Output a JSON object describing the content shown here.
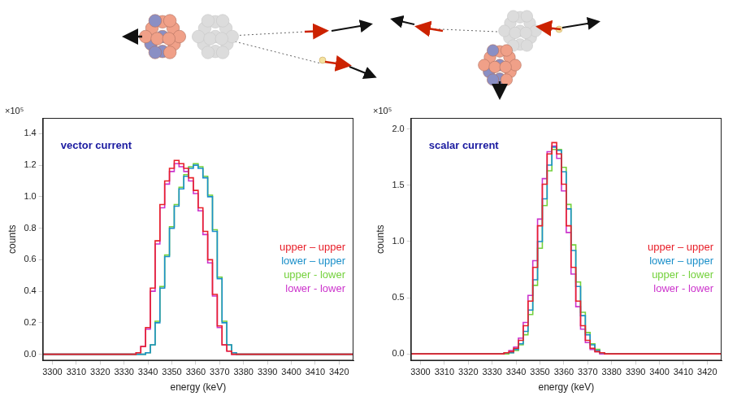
{
  "chart_data": [
    {
      "type": "line",
      "title": "vector current",
      "x_label": "energy (keV)",
      "y_label": "counts",
      "y_unit": "×10⁵",
      "grid": false,
      "legend": "right",
      "xlim": [
        3296,
        3426
      ],
      "xticks": [
        3300,
        3310,
        3320,
        3330,
        3340,
        3350,
        3360,
        3370,
        3380,
        3390,
        3400,
        3410,
        3420
      ],
      "ylim": [
        -0.04,
        1.5
      ],
      "yticks": [
        {
          "value": 0,
          "label": "0.0"
        },
        {
          "value": 0.2,
          "label": "0.2"
        },
        {
          "value": 0.4,
          "label": "0.4"
        },
        {
          "value": 0.6,
          "label": "0.6"
        },
        {
          "value": 0.8,
          "label": "0.8"
        },
        {
          "value": 1.0,
          "label": "1.0"
        },
        {
          "value": 1.2,
          "label": "1.2"
        },
        {
          "value": 1.4,
          "label": "1.4"
        }
      ],
      "x": [
        3296,
        3330,
        3332,
        3334,
        3336,
        3338,
        3340,
        3342,
        3344,
        3346,
        3348,
        3350,
        3352,
        3354,
        3356,
        3358,
        3360,
        3362,
        3364,
        3366,
        3368,
        3370,
        3372,
        3374,
        3376,
        3378,
        3380,
        3382,
        3384,
        3426
      ],
      "series": [
        {
          "name": "upper – upper",
          "color": "#e8202a",
          "values": [
            0,
            0,
            0,
            0,
            0.01,
            0.05,
            0.17,
            0.42,
            0.72,
            0.95,
            1.1,
            1.18,
            1.23,
            1.21,
            1.18,
            1.12,
            1.04,
            0.93,
            0.78,
            0.6,
            0.38,
            0.18,
            0.06,
            0.02,
            0,
            0,
            0,
            0,
            0,
            0
          ]
        },
        {
          "name": "lower – upper",
          "color": "#1a8fc9",
          "values": [
            0,
            0,
            0,
            0,
            0,
            0,
            0.01,
            0.06,
            0.2,
            0.42,
            0.62,
            0.8,
            0.94,
            1.05,
            1.13,
            1.18,
            1.2,
            1.18,
            1.12,
            1.0,
            0.78,
            0.48,
            0.2,
            0.06,
            0.01,
            0,
            0,
            0,
            0,
            0
          ]
        },
        {
          "name": "upper - lower",
          "color": "#74d13c",
          "values": [
            0,
            0,
            0,
            0,
            0,
            0,
            0.01,
            0.06,
            0.21,
            0.43,
            0.63,
            0.81,
            0.95,
            1.06,
            1.14,
            1.19,
            1.21,
            1.19,
            1.13,
            1.01,
            0.79,
            0.49,
            0.21,
            0.06,
            0.01,
            0,
            0,
            0,
            0,
            0
          ]
        },
        {
          "name": "lower - lower",
          "color": "#cc33cc",
          "values": [
            0,
            0,
            0,
            0,
            0.01,
            0.05,
            0.16,
            0.4,
            0.7,
            0.93,
            1.08,
            1.16,
            1.21,
            1.19,
            1.16,
            1.1,
            1.02,
            0.91,
            0.76,
            0.58,
            0.37,
            0.17,
            0.06,
            0.02,
            0,
            0,
            0,
            0,
            0,
            0
          ]
        }
      ]
    },
    {
      "type": "line",
      "title": "scalar current",
      "x_label": "energy (keV)",
      "y_label": "counts",
      "y_unit": "×10⁵",
      "grid": false,
      "legend": "right",
      "xlim": [
        3296,
        3426
      ],
      "xticks": [
        3300,
        3310,
        3320,
        3330,
        3340,
        3350,
        3360,
        3370,
        3380,
        3390,
        3400,
        3410,
        3420
      ],
      "ylim": [
        -0.06,
        2.1
      ],
      "yticks": [
        {
          "value": 0,
          "label": "0.0"
        },
        {
          "value": 0.5,
          "label": "0.5"
        },
        {
          "value": 1.0,
          "label": "1.0"
        },
        {
          "value": 1.5,
          "label": "1.5"
        },
        {
          "value": 2.0,
          "label": "2.0"
        }
      ],
      "x": [
        3296,
        3330,
        3332,
        3334,
        3336,
        3338,
        3340,
        3342,
        3344,
        3346,
        3348,
        3350,
        3352,
        3354,
        3356,
        3358,
        3360,
        3362,
        3364,
        3366,
        3368,
        3370,
        3372,
        3374,
        3376,
        3378,
        3380,
        3382,
        3384,
        3426
      ],
      "series": [
        {
          "name": "upper – upper",
          "color": "#e8202a",
          "values": [
            0,
            0,
            0,
            0,
            0.01,
            0.02,
            0.05,
            0.12,
            0.25,
            0.47,
            0.77,
            1.14,
            1.51,
            1.78,
            1.88,
            1.78,
            1.51,
            1.14,
            0.77,
            0.47,
            0.25,
            0.12,
            0.05,
            0.02,
            0.01,
            0,
            0,
            0,
            0,
            0
          ]
        },
        {
          "name": "lower – upper",
          "color": "#1a8fc9",
          "values": [
            0,
            0,
            0,
            0,
            0.01,
            0.01,
            0.04,
            0.09,
            0.2,
            0.39,
            0.66,
            1.0,
            1.38,
            1.68,
            1.84,
            1.81,
            1.62,
            1.29,
            0.92,
            0.6,
            0.34,
            0.17,
            0.08,
            0.03,
            0.01,
            0,
            0,
            0,
            0,
            0
          ]
        },
        {
          "name": "upper - lower",
          "color": "#74d13c",
          "values": [
            0,
            0,
            0,
            0,
            0,
            0.01,
            0.03,
            0.08,
            0.17,
            0.35,
            0.61,
            0.94,
            1.32,
            1.63,
            1.82,
            1.82,
            1.66,
            1.33,
            0.97,
            0.64,
            0.37,
            0.19,
            0.09,
            0.04,
            0.01,
            0,
            0,
            0,
            0,
            0
          ]
        },
        {
          "name": "lower - lower",
          "color": "#cc33cc",
          "values": [
            0,
            0,
            0,
            0,
            0.01,
            0.03,
            0.06,
            0.14,
            0.28,
            0.52,
            0.83,
            1.2,
            1.56,
            1.8,
            1.85,
            1.74,
            1.45,
            1.08,
            0.71,
            0.42,
            0.22,
            0.1,
            0.04,
            0.02,
            0,
            0,
            0,
            0,
            0,
            0
          ]
        }
      ]
    }
  ]
}
